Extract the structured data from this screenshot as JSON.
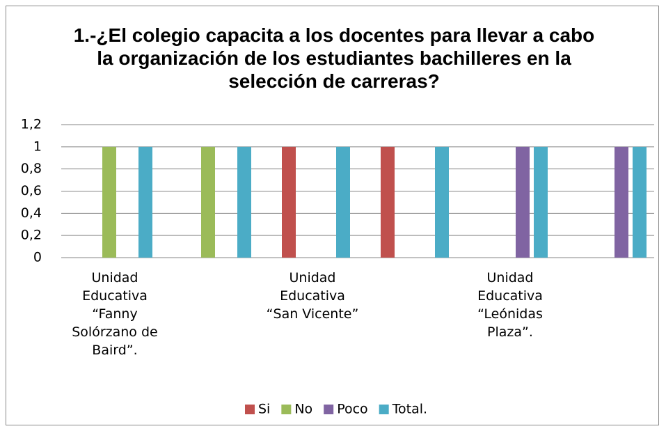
{
  "chart_data": {
    "type": "bar",
    "title": "1.-¿El colegio capacita a los docentes para llevar a cabo la organización de los estudiantes bachilleres en la selección de carreras?",
    "categories": [
      "Unidad Educativa “Fanny Solórzano de Baird”.",
      null,
      "Unidad Educativa “San Vicente”",
      null,
      "Unidad Educativa “Leónidas Plaza”.",
      null
    ],
    "series": [
      {
        "name": "Si",
        "color": "#c0504d",
        "values": [
          0,
          0,
          1,
          1,
          0,
          0
        ]
      },
      {
        "name": "No",
        "color": "#9bbb59",
        "values": [
          1,
          1,
          0,
          0,
          0,
          0
        ]
      },
      {
        "name": "Poco",
        "color": "#8064a2",
        "values": [
          0,
          0,
          0,
          0,
          1,
          1
        ]
      },
      {
        "name": "Total.",
        "color": "#4bacc6",
        "values": [
          1,
          1,
          1,
          1,
          1,
          1
        ]
      }
    ],
    "ylim": [
      0,
      1.2
    ],
    "yticks": [
      0,
      {
        "value": 0.2,
        "label": "0,2"
      },
      {
        "value": 0.4,
        "label": "0,4"
      },
      {
        "value": 0.6,
        "label": "0,6"
      },
      {
        "value": 0.8,
        "label": "0,8"
      },
      1,
      {
        "value": 1.2,
        "label": "1,2"
      }
    ],
    "grid": true,
    "legend": "bottom"
  }
}
